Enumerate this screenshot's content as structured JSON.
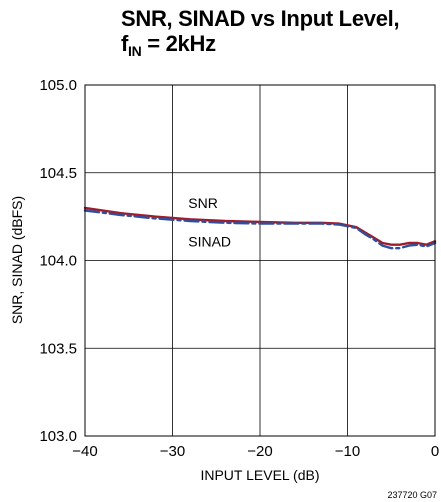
{
  "title": {
    "line1": "SNR, SINAD vs Input Level,",
    "line2_main": "f",
    "line2_sub": "IN",
    "line2_rest": " = 2kHz"
  },
  "footnote": "237720 G07",
  "chart_data": {
    "type": "line",
    "title": "SNR, SINAD vs Input Level, fIN = 2kHz",
    "xlabel": "INPUT LEVEL (dB)",
    "ylabel": "SNR, SINAD (dBFS)",
    "xlim": [
      -40,
      0
    ],
    "ylim": [
      103.0,
      105.0
    ],
    "xticks": [
      -40,
      -30,
      -20,
      -10,
      0
    ],
    "xtick_labels": [
      "−40",
      "−30",
      "−20",
      "−10",
      "0"
    ],
    "yticks": [
      103.0,
      103.5,
      104.0,
      104.5,
      105.0
    ],
    "ytick_labels": [
      "103.0",
      "103.5",
      "104.0",
      "104.5",
      "105.0"
    ],
    "grid": true,
    "annotations": [
      {
        "text": "SNR",
        "x": -28.2,
        "y": 104.3
      },
      {
        "text": "SINAD",
        "x": -28.2,
        "y": 104.08
      }
    ],
    "series": [
      {
        "label": "SNR",
        "color": "#a01c2b",
        "style": "solid",
        "x": [
          -40,
          -36,
          -32,
          -28,
          -24,
          -20,
          -16,
          -13,
          -11,
          -9,
          -8,
          -7,
          -6,
          -5,
          -4,
          -3,
          -2,
          -1,
          0
        ],
        "y": [
          104.3,
          104.27,
          104.25,
          104.235,
          104.225,
          104.22,
          104.215,
          104.215,
          104.21,
          104.19,
          104.16,
          104.13,
          104.1,
          104.09,
          104.09,
          104.1,
          104.1,
          104.09,
          104.11
        ]
      },
      {
        "label": "SINAD",
        "color": "#2f4f9e",
        "style": "dashed",
        "x": [
          -40,
          -36,
          -32,
          -28,
          -24,
          -20,
          -16,
          -13,
          -11,
          -9,
          -8,
          -7,
          -6,
          -5,
          -4,
          -3,
          -2,
          -1,
          0
        ],
        "y": [
          104.285,
          104.26,
          104.24,
          104.225,
          104.215,
          104.21,
          104.21,
          104.21,
          104.205,
          104.185,
          104.15,
          104.12,
          104.085,
          104.07,
          104.07,
          104.085,
          104.09,
          104.08,
          104.1
        ]
      }
    ]
  }
}
